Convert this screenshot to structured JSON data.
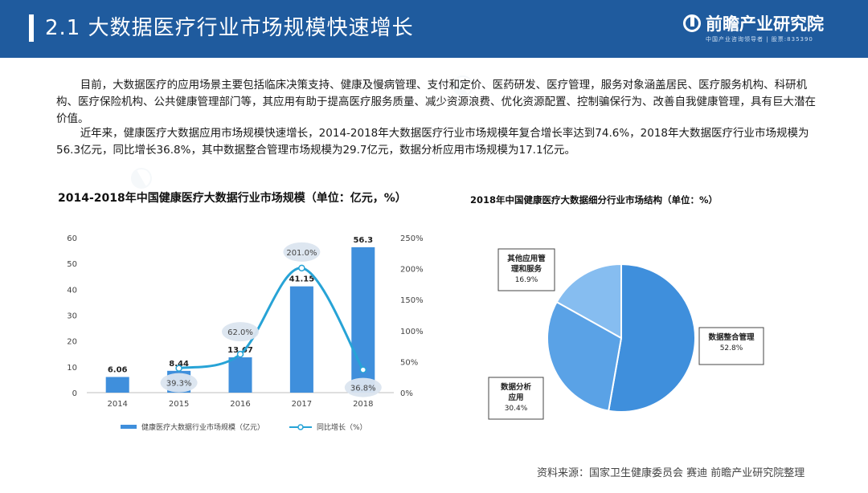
{
  "header": {
    "title": "2.1  大数据医疗行业市场规模快速增长",
    "logo_text": "前瞻产业研究院",
    "logo_subtext": "中国产业咨询领导者 | 股票:835390"
  },
  "paragraphs": [
    "目前，大数据医疗的应用场景主要包括临床决策支持、健康及慢病管理、支付和定价、医药研发、医疗管理，服务对象涵盖居民、医疗服务机构、科研机构、医疗保险机构、公共健康管理部门等，其应用有助于提高医疗服务质量、减少资源浪费、优化资源配置、控制骗保行为、改善自我健康管理，具有巨大潜在价值。",
    "近年来，健康医疗大数据应用市场规模快速增长，2014-2018年大数据医疗行业市场规模年复合增长率达到74.6%，2018年大数据医疗行业市场规模为56.3亿元，同比增长36.8%，其中数据整合管理市场规模为29.7亿元，数据分析应用市场规模为17.1亿元。"
  ],
  "chart_data": [
    {
      "type": "bar",
      "title": "2014-2018年中国健康医疗大数据行业市场规模（单位：亿元，%）",
      "categories": [
        "2014",
        "2015",
        "2016",
        "2017",
        "2018"
      ],
      "series": [
        {
          "name": "健康医疗大数据行业市场规模（亿元）",
          "type": "bar",
          "axis": "left",
          "values": [
            6.06,
            8.44,
            13.67,
            41.15,
            56.3
          ],
          "labels": [
            "6.06",
            "8.44",
            "13.67",
            "41.15",
            "56.3"
          ],
          "color": "#3f8fdc"
        },
        {
          "name": "同比增长（%）",
          "type": "line",
          "axis": "right",
          "x": [
            "2015",
            "2016",
            "2017",
            "2018"
          ],
          "values": [
            39.3,
            62.0,
            201.0,
            36.8
          ],
          "labels": [
            "39.3%",
            "62.0%",
            "201.0%",
            "36.8%"
          ],
          "color": "#27a3d6"
        }
      ],
      "y_left": {
        "min": 0,
        "max": 60,
        "ticks": [
          "0",
          "10",
          "20",
          "30",
          "40",
          "50",
          "60"
        ]
      },
      "y_right": {
        "min": 0,
        "max": 250,
        "ticks": [
          "0%",
          "50%",
          "100%",
          "150%",
          "200%",
          "250%"
        ]
      },
      "legend_position": "bottom",
      "grid": false
    },
    {
      "type": "pie",
      "title": "2018年中国健康医疗大数据细分行业市场结构（单位：%）",
      "slices": [
        {
          "name": "数据整合管理",
          "value": 52.8,
          "label": "52.8%",
          "color": "#3f8fdc"
        },
        {
          "name": "数据分析应用",
          "value": 30.4,
          "label": "30.4%",
          "color": "#5aa2e6"
        },
        {
          "name": "其他应用管理和服务",
          "value": 16.9,
          "label": "16.9%",
          "color": "#86bdf0"
        }
      ],
      "callout_lines": [
        [
          "数据整合管理"
        ],
        [
          "数据分析",
          "应用"
        ],
        [
          "其他应用管",
          "理和服务"
        ]
      ],
      "legend_position": "callouts"
    }
  ],
  "source": "资料来源：国家卫生健康委员会 赛迪 前瞻产业研究院整理"
}
